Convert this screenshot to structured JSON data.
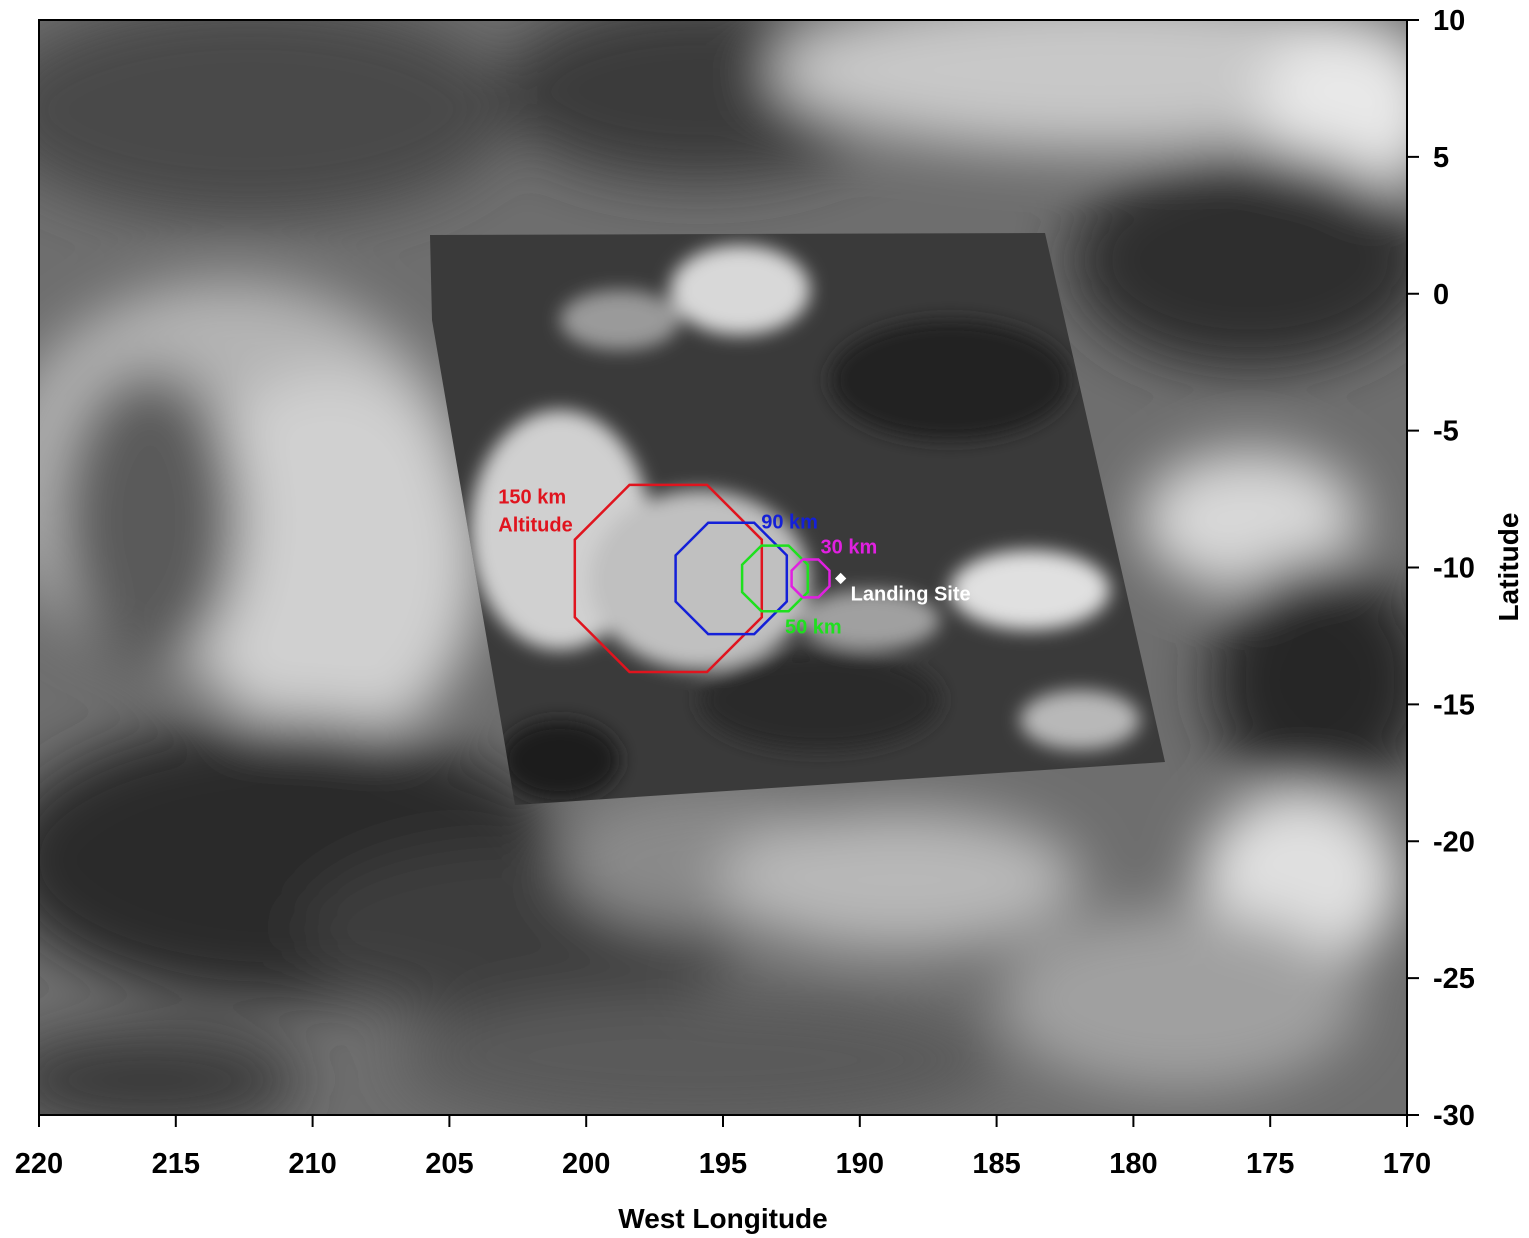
{
  "chart_data": {
    "type": "scatter",
    "title": "",
    "xlabel": "West Longitude",
    "ylabel": "Latitude",
    "xlim": [
      220,
      170
    ],
    "ylim": [
      -30,
      10
    ],
    "x_axis_reversed": true,
    "y_axis_side": "right",
    "x_ticks": [
      220,
      215,
      210,
      205,
      200,
      195,
      190,
      185,
      180,
      175,
      170
    ],
    "y_ticks": [
      10,
      5,
      0,
      -5,
      -10,
      -15,
      -20,
      -25,
      -30
    ],
    "grid": false,
    "legend": "none",
    "background": "grayscale surface mosaic image",
    "footprints": [
      {
        "label": "150 km Altitude",
        "label_lines": [
          "150 km",
          "Altitude"
        ],
        "center": [
          197.0,
          -10.4
        ],
        "radius_deg": 3.7,
        "color": "#e0141e"
      },
      {
        "label": "90 km",
        "center": [
          194.7,
          -10.4
        ],
        "radius_deg": 2.2,
        "color": "#1420d8"
      },
      {
        "label": "50 km",
        "center": [
          193.1,
          -10.4
        ],
        "radius_deg": 1.3,
        "color": "#1ee01e"
      },
      {
        "label": "30 km",
        "center": [
          191.8,
          -10.4
        ],
        "radius_deg": 0.75,
        "color": "#e020e0"
      }
    ],
    "landing_site": {
      "label": "Landing Site",
      "lon": 190.7,
      "lat": -10.4,
      "color": "#ffffff"
    }
  }
}
